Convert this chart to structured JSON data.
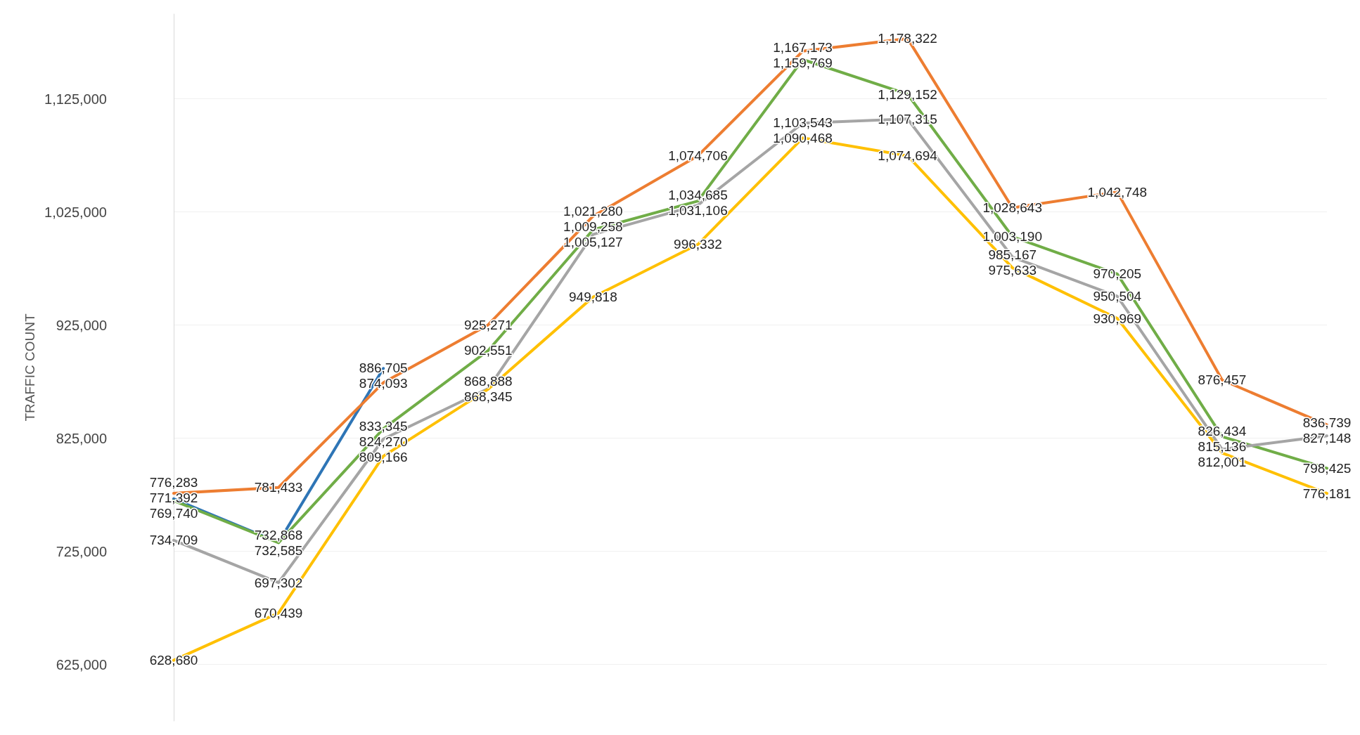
{
  "chart_data": {
    "type": "line",
    "ylabel": "TRAFFIC COUNT",
    "categories": [
      null,
      null,
      null,
      null,
      null,
      null,
      null,
      null,
      null,
      null,
      null,
      null
    ],
    "ylim": [
      575000,
      1200000
    ],
    "yticks": [
      {
        "value": 625000,
        "label": "625,000"
      },
      {
        "value": 725000,
        "label": "725,000"
      },
      {
        "value": 825000,
        "label": "825,000"
      },
      {
        "value": 925000,
        "label": "925,000"
      },
      {
        "value": 1025000,
        "label": "1,025,000"
      },
      {
        "value": 1125000,
        "label": "1,125,000"
      }
    ],
    "grid": "y",
    "marker": "none",
    "line_style": "solid",
    "tick_labels": "y",
    "series": [
      {
        "color": "#2e75b6",
        "values": [
          771392,
          732868,
          886705,
          null,
          null,
          null,
          null,
          null,
          null,
          null,
          null,
          null
        ],
        "value_labels": [
          "771,392",
          "732,868",
          "886,705",
          null,
          null,
          null,
          null,
          null,
          null,
          null,
          null,
          null
        ]
      },
      {
        "color": "#ed7d31",
        "values": [
          776283,
          781433,
          874093,
          925271,
          1021280,
          1074706,
          1167173,
          1178322,
          1028643,
          1042748,
          876457,
          836739
        ],
        "value_labels": [
          "776,283",
          "781,433",
          "874,093",
          "925,271",
          "1,021,280",
          "1,074,706",
          "1,167,173",
          "1,178,322",
          "1,028,643",
          "1,042,748",
          "876,457",
          "836,739"
        ]
      },
      {
        "color": "#70ad47",
        "values": [
          769740,
          732585,
          833345,
          902551,
          1009258,
          1034685,
          1159769,
          1129152,
          1003190,
          970205,
          826434,
          798425
        ],
        "value_labels": [
          "769,740",
          "732,585",
          "833,345",
          "902,551",
          "1,009,258",
          "1,034,685",
          "1,159,769",
          "1,129,152",
          "1,003,190",
          "970,205",
          "826,434",
          "798,425"
        ]
      },
      {
        "color": "#a5a5a5",
        "values": [
          734709,
          697302,
          824270,
          868888,
          1005127,
          1031106,
          1103543,
          1107315,
          985167,
          950504,
          815136,
          827148
        ],
        "value_labels": [
          "734,709",
          "697,302",
          "824,270",
          "868,888",
          "1,005,127",
          "1,031,106",
          "1,103,543",
          "1,107,315",
          "985,167",
          "950,504",
          "815,136",
          "827,148"
        ]
      },
      {
        "color": "#ffc000",
        "values": [
          628680,
          670439,
          809166,
          868345,
          949818,
          996332,
          1090468,
          1074694,
          975633,
          930969,
          812001,
          776181
        ],
        "value_labels": [
          "628,680",
          "670,439",
          "809,166",
          "868,345",
          "949,818",
          "996,332",
          "1,090,468",
          "1,074,694",
          "975,633",
          "930,969",
          "812,001",
          "776,181"
        ]
      }
    ]
  }
}
